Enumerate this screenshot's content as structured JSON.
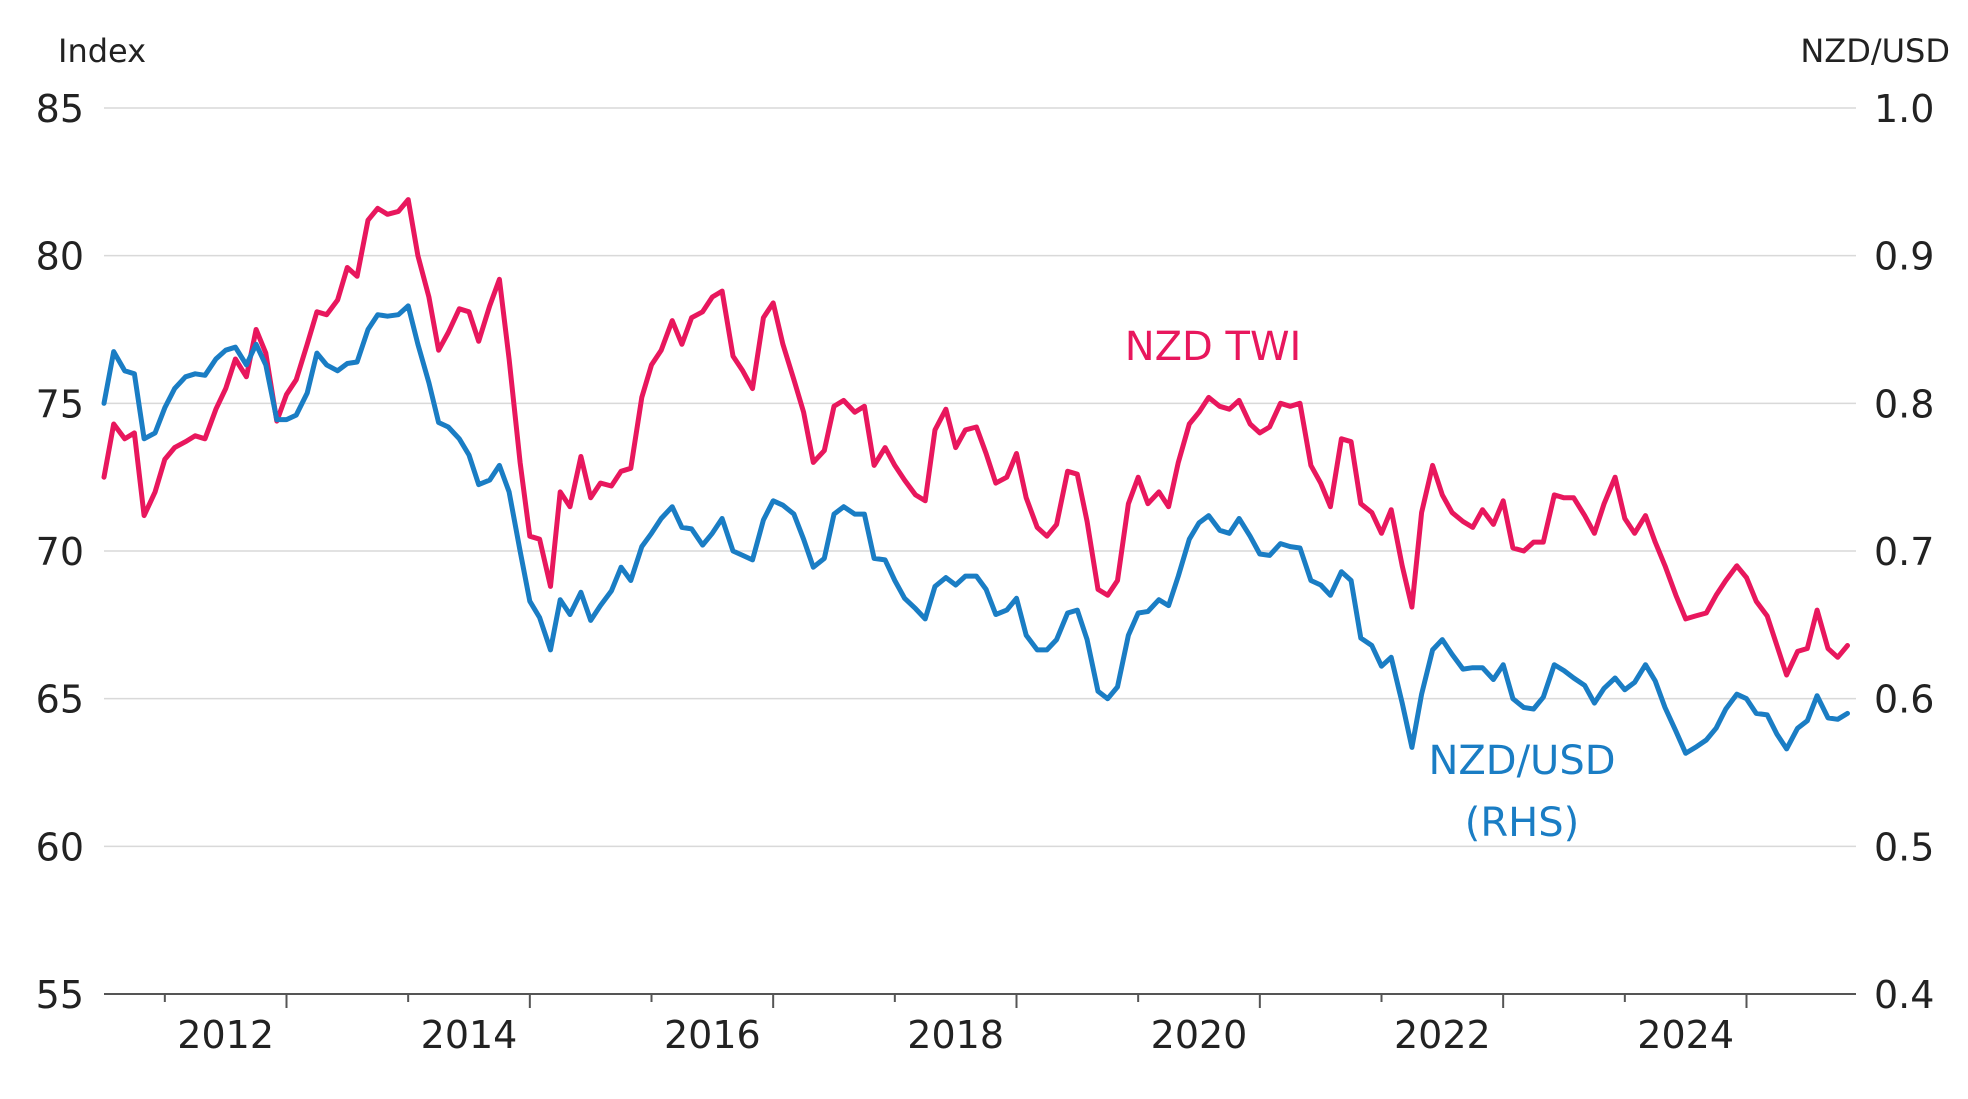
{
  "chart_data": {
    "type": "line",
    "left_axis_label": "Index",
    "right_axis_label": "NZD/USD",
    "left_ylim": [
      55,
      85
    ],
    "right_ylim": [
      0.4,
      1.0
    ],
    "left_ticks": [
      "85",
      "80",
      "75",
      "70",
      "65",
      "60",
      "55"
    ],
    "right_ticks": [
      "1.0",
      "0.9",
      "0.8",
      "0.7",
      "0.6",
      "0.5",
      "0.4"
    ],
    "x_range": [
      2011.5,
      2025.9
    ],
    "x_ticks": [
      "2012",
      "2014",
      "2016",
      "2018",
      "2020",
      "2022",
      "2024"
    ],
    "grid": true,
    "series": [
      {
        "name": "NZD TWI",
        "axis": "left",
        "color": "#e8175d",
        "x": [
          2011.5,
          2011.58,
          2011.67,
          2011.75,
          2011.83,
          2011.92,
          2012.0,
          2012.08,
          2012.17,
          2012.25,
          2012.33,
          2012.42,
          2012.5,
          2012.58,
          2012.67,
          2012.75,
          2012.83,
          2012.92,
          2013.0,
          2013.08,
          2013.17,
          2013.25,
          2013.33,
          2013.42,
          2013.5,
          2013.58,
          2013.67,
          2013.75,
          2013.83,
          2013.92,
          2014.0,
          2014.08,
          2014.17,
          2014.25,
          2014.33,
          2014.42,
          2014.5,
          2014.58,
          2014.67,
          2014.75,
          2014.83,
          2014.92,
          2015.0,
          2015.08,
          2015.17,
          2015.25,
          2015.33,
          2015.42,
          2015.5,
          2015.58,
          2015.67,
          2015.75,
          2015.83,
          2015.92,
          2016.0,
          2016.08,
          2016.17,
          2016.25,
          2016.33,
          2016.42,
          2016.5,
          2016.58,
          2016.67,
          2016.75,
          2016.83,
          2016.92,
          2017.0,
          2017.08,
          2017.17,
          2017.25,
          2017.33,
          2017.42,
          2017.5,
          2017.58,
          2017.67,
          2017.75,
          2017.83,
          2017.92,
          2018.0,
          2018.08,
          2018.17,
          2018.25,
          2018.33,
          2018.42,
          2018.5,
          2018.58,
          2018.67,
          2018.75,
          2018.83,
          2018.92,
          2019.0,
          2019.08,
          2019.17,
          2019.25,
          2019.33,
          2019.42,
          2019.5,
          2019.58,
          2019.67,
          2019.75,
          2019.83,
          2019.92,
          2020.0,
          2020.08,
          2020.17,
          2020.25,
          2020.33,
          2020.42,
          2020.5,
          2020.58,
          2020.67,
          2020.75,
          2020.83,
          2020.92,
          2021.0,
          2021.08,
          2021.17,
          2021.25,
          2021.33,
          2021.42,
          2021.5,
          2021.58,
          2021.67,
          2021.75,
          2021.83,
          2021.92,
          2022.0,
          2022.08,
          2022.17,
          2022.25,
          2022.33,
          2022.42,
          2022.5,
          2022.58,
          2022.67,
          2022.75,
          2022.83,
          2022.92,
          2023.0,
          2023.08,
          2023.17,
          2023.25,
          2023.33,
          2023.42,
          2023.5,
          2023.58,
          2023.67,
          2023.75,
          2023.83,
          2023.92,
          2024.0,
          2024.08,
          2024.17,
          2024.25,
          2024.33,
          2024.42,
          2024.5,
          2024.58,
          2024.67,
          2024.75,
          2024.83,
          2024.92,
          2025.0,
          2025.08,
          2025.17,
          2025.25,
          2025.33,
          2025.42,
          2025.5,
          2025.58,
          2025.67,
          2025.75,
          2025.83
        ],
        "values": [
          72.5,
          74.3,
          73.8,
          74.0,
          71.2,
          72.0,
          73.1,
          73.5,
          73.7,
          73.9,
          73.8,
          74.8,
          75.5,
          76.5,
          75.9,
          77.5,
          76.7,
          74.4,
          75.3,
          75.8,
          77.0,
          78.1,
          78.0,
          78.5,
          79.6,
          79.3,
          81.2,
          81.6,
          81.4,
          81.5,
          81.9,
          80.0,
          78.6,
          76.8,
          77.4,
          78.2,
          78.1,
          77.1,
          78.3,
          79.2,
          76.5,
          73.0,
          70.5,
          70.4,
          68.8,
          72.0,
          71.5,
          73.2,
          71.8,
          72.3,
          72.2,
          72.7,
          72.8,
          75.2,
          76.3,
          76.8,
          77.8,
          77.0,
          77.9,
          78.1,
          78.6,
          78.8,
          76.6,
          76.1,
          75.5,
          77.9,
          78.4,
          77.0,
          75.8,
          74.7,
          73.0,
          73.4,
          74.9,
          75.1,
          74.7,
          74.9,
          72.9,
          73.5,
          72.9,
          72.4,
          71.9,
          71.7,
          74.1,
          74.8,
          73.5,
          74.1,
          74.2,
          73.3,
          72.3,
          72.5,
          73.3,
          71.8,
          70.8,
          70.5,
          70.9,
          72.7,
          72.6,
          71.0,
          68.7,
          68.5,
          69.0,
          71.6,
          72.5,
          71.6,
          72.0,
          71.5,
          73.0,
          74.3,
          74.7,
          75.2,
          74.9,
          74.8,
          75.1,
          74.3,
          74.0,
          74.2,
          75.0,
          74.9,
          75.0,
          72.9,
          72.3,
          71.5,
          73.8,
          73.7,
          71.6,
          71.3,
          70.6,
          71.4,
          69.5,
          68.1,
          71.3,
          72.9,
          71.9,
          71.3,
          71.0,
          70.8,
          71.4,
          70.9,
          71.7,
          70.1,
          70.0,
          70.3,
          70.3,
          71.9,
          71.8,
          71.8,
          71.2,
          70.6,
          71.6,
          72.5,
          71.1,
          70.6,
          71.2,
          70.3,
          69.5,
          68.5,
          67.7,
          67.8,
          67.9,
          68.5,
          69.0,
          69.5,
          69.1,
          68.3,
          67.8,
          66.8,
          65.8,
          66.6,
          66.7,
          68.0,
          66.7,
          66.4,
          66.8
        ]
      },
      {
        "name": "NZD/USD (RHS)",
        "axis": "right",
        "color": "#1a7dc4",
        "x": [
          2011.5,
          2011.58,
          2011.67,
          2011.75,
          2011.83,
          2011.92,
          2012.0,
          2012.08,
          2012.17,
          2012.25,
          2012.33,
          2012.42,
          2012.5,
          2012.58,
          2012.67,
          2012.75,
          2012.83,
          2012.92,
          2013.0,
          2013.08,
          2013.17,
          2013.25,
          2013.33,
          2013.42,
          2013.5,
          2013.58,
          2013.67,
          2013.75,
          2013.83,
          2013.92,
          2014.0,
          2014.08,
          2014.17,
          2014.25,
          2014.33,
          2014.42,
          2014.5,
          2014.58,
          2014.67,
          2014.75,
          2014.83,
          2014.92,
          2015.0,
          2015.08,
          2015.17,
          2015.25,
          2015.33,
          2015.42,
          2015.5,
          2015.58,
          2015.67,
          2015.75,
          2015.83,
          2015.92,
          2016.0,
          2016.08,
          2016.17,
          2016.25,
          2016.33,
          2016.42,
          2016.5,
          2016.58,
          2016.67,
          2016.75,
          2016.83,
          2016.92,
          2017.0,
          2017.08,
          2017.17,
          2017.25,
          2017.33,
          2017.42,
          2017.5,
          2017.58,
          2017.67,
          2017.75,
          2017.83,
          2017.92,
          2018.0,
          2018.08,
          2018.17,
          2018.25,
          2018.33,
          2018.42,
          2018.5,
          2018.58,
          2018.67,
          2018.75,
          2018.83,
          2018.92,
          2019.0,
          2019.08,
          2019.17,
          2019.25,
          2019.33,
          2019.42,
          2019.5,
          2019.58,
          2019.67,
          2019.75,
          2019.83,
          2019.92,
          2020.0,
          2020.08,
          2020.17,
          2020.25,
          2020.33,
          2020.42,
          2020.5,
          2020.58,
          2020.67,
          2020.75,
          2020.83,
          2020.92,
          2021.0,
          2021.08,
          2021.17,
          2021.25,
          2021.33,
          2021.42,
          2021.5,
          2021.58,
          2021.67,
          2021.75,
          2021.83,
          2021.92,
          2022.0,
          2022.08,
          2022.17,
          2022.25,
          2022.33,
          2022.42,
          2022.5,
          2022.58,
          2022.67,
          2022.75,
          2022.83,
          2022.92,
          2023.0,
          2023.08,
          2023.17,
          2023.25,
          2023.33,
          2023.42,
          2023.5,
          2023.58,
          2023.67,
          2023.75,
          2023.83,
          2023.92,
          2024.0,
          2024.08,
          2024.17,
          2024.25,
          2024.33,
          2024.42,
          2024.5,
          2024.58,
          2024.67,
          2024.75,
          2024.83,
          2024.92,
          2025.0,
          2025.08,
          2025.17,
          2025.25,
          2025.33,
          2025.42,
          2025.5,
          2025.58,
          2025.67,
          2025.75,
          2025.83
        ],
        "values": [
          0.8,
          0.835,
          0.822,
          0.82,
          0.776,
          0.78,
          0.797,
          0.81,
          0.818,
          0.82,
          0.819,
          0.83,
          0.836,
          0.838,
          0.826,
          0.84,
          0.826,
          0.789,
          0.789,
          0.792,
          0.807,
          0.834,
          0.826,
          0.822,
          0.827,
          0.828,
          0.85,
          0.86,
          0.859,
          0.86,
          0.866,
          0.84,
          0.814,
          0.787,
          0.784,
          0.776,
          0.765,
          0.745,
          0.748,
          0.758,
          0.74,
          0.7,
          0.666,
          0.655,
          0.633,
          0.667,
          0.657,
          0.672,
          0.653,
          0.663,
          0.673,
          0.689,
          0.68,
          0.703,
          0.712,
          0.722,
          0.73,
          0.716,
          0.715,
          0.704,
          0.712,
          0.722,
          0.7,
          0.697,
          0.694,
          0.721,
          0.734,
          0.731,
          0.725,
          0.708,
          0.689,
          0.695,
          0.725,
          0.73,
          0.725,
          0.725,
          0.695,
          0.694,
          0.68,
          0.668,
          0.661,
          0.654,
          0.676,
          0.682,
          0.677,
          0.683,
          0.683,
          0.674,
          0.657,
          0.66,
          0.668,
          0.643,
          0.633,
          0.633,
          0.64,
          0.658,
          0.66,
          0.64,
          0.605,
          0.6,
          0.608,
          0.643,
          0.658,
          0.659,
          0.667,
          0.663,
          0.683,
          0.708,
          0.719,
          0.724,
          0.714,
          0.712,
          0.722,
          0.71,
          0.698,
          0.697,
          0.705,
          0.703,
          0.702,
          0.68,
          0.677,
          0.67,
          0.686,
          0.68,
          0.641,
          0.636,
          0.622,
          0.628,
          0.597,
          0.567,
          0.603,
          0.633,
          0.64,
          0.63,
          0.62,
          0.621,
          0.621,
          0.613,
          0.623,
          0.6,
          0.594,
          0.593,
          0.601,
          0.623,
          0.619,
          0.614,
          0.609,
          0.597,
          0.607,
          0.614,
          0.606,
          0.611,
          0.623,
          0.612,
          0.594,
          0.578,
          0.563,
          0.567,
          0.572,
          0.58,
          0.593,
          0.603,
          0.6,
          0.59,
          0.589,
          0.576,
          0.566,
          0.58,
          0.585,
          0.602,
          0.587,
          0.586,
          0.59
        ]
      }
    ],
    "annotations": [
      {
        "text": "NZD TWI",
        "series": 0
      },
      {
        "text": "NZD/USD",
        "series": 1
      },
      {
        "text": "(RHS)",
        "series": 1
      }
    ]
  }
}
